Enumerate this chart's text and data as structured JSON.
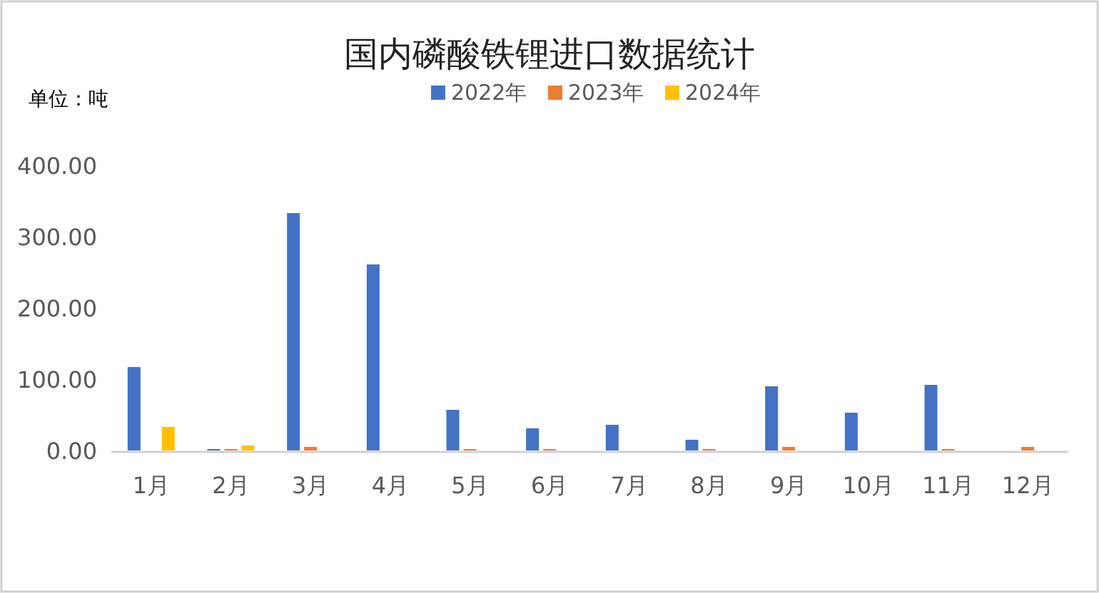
{
  "chart_data": {
    "type": "bar",
    "title": "国内磷酸铁锂进口数据统计",
    "ylabel": "单位：吨",
    "categories": [
      "1月",
      "2月",
      "3月",
      "4月",
      "5月",
      "6月",
      "7月",
      "8月",
      "9月",
      "10月",
      "11月",
      "12月"
    ],
    "series": [
      {
        "name": "2022年",
        "color": "#4472c4",
        "values": [
          117,
          2,
          333,
          261,
          57,
          31,
          36,
          15,
          90,
          53,
          92,
          null
        ]
      },
      {
        "name": "2023年",
        "color": "#ed7d31",
        "values": [
          null,
          2,
          5,
          null,
          2,
          2,
          null,
          2,
          5,
          null,
          2,
          5
        ]
      },
      {
        "name": "2024年",
        "color": "#ffc000",
        "values": [
          33,
          7,
          null,
          null,
          null,
          null,
          null,
          null,
          null,
          null,
          null,
          null
        ]
      }
    ],
    "ylim": [
      0,
      400
    ],
    "yticks": [
      {
        "value": 0,
        "label": "0.00"
      },
      {
        "value": 100,
        "label": "100.00"
      },
      {
        "value": 200,
        "label": "200.00"
      },
      {
        "value": 300,
        "label": "300.00"
      },
      {
        "value": 400,
        "label": "400.00"
      }
    ],
    "legend": "top"
  }
}
